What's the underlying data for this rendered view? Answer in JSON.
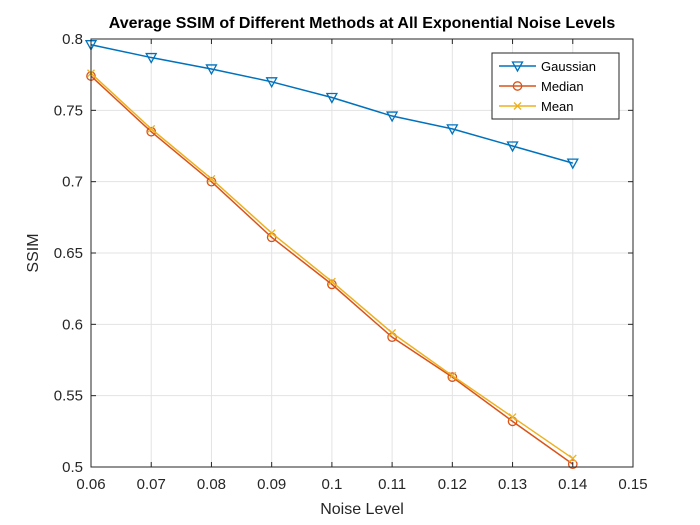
{
  "chart_data": {
    "type": "line",
    "title": "Average SSIM of Different Methods at All Exponential Noise Levels",
    "xlabel": "Noise Level",
    "ylabel": "SSIM",
    "xlim": [
      0.06,
      0.15
    ],
    "ylim": [
      0.5,
      0.8
    ],
    "xticks": [
      "0.06",
      "0.07",
      "0.08",
      "0.09",
      "0.1",
      "0.11",
      "0.12",
      "0.13",
      "0.14",
      "0.15"
    ],
    "yticks": [
      "0.5",
      "0.55",
      "0.6",
      "0.65",
      "0.7",
      "0.75",
      "0.8"
    ],
    "grid": true,
    "legend_position": "top-right",
    "x": [
      0.06,
      0.07,
      0.08,
      0.09,
      0.1,
      0.11,
      0.12,
      0.13,
      0.14
    ],
    "series": [
      {
        "name": "Gaussian",
        "color": "#0072BD",
        "marker": "triangle-down",
        "values": [
          0.796,
          0.787,
          0.779,
          0.77,
          0.759,
          0.746,
          0.737,
          0.725,
          0.713
        ]
      },
      {
        "name": "Median",
        "color": "#D95319",
        "marker": "circle",
        "values": [
          0.774,
          0.735,
          0.7,
          0.661,
          0.628,
          0.591,
          0.563,
          0.532,
          0.502
        ]
      },
      {
        "name": "Mean",
        "color": "#EDB120",
        "marker": "x",
        "values": [
          0.776,
          0.737,
          0.702,
          0.664,
          0.63,
          0.594,
          0.564,
          0.535,
          0.506
        ]
      }
    ]
  }
}
